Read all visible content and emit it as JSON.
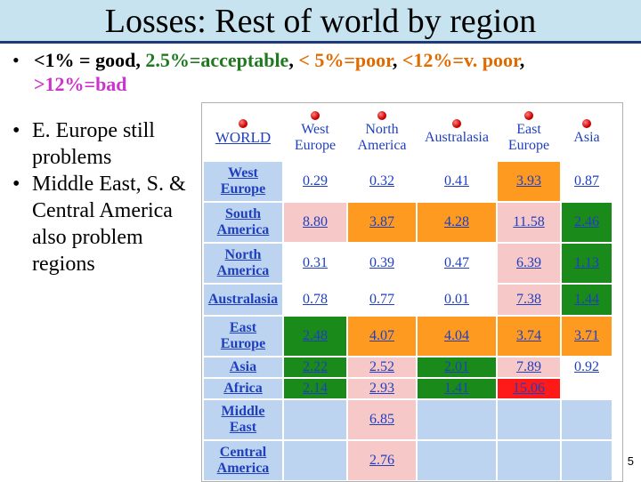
{
  "title": "Losses: Rest of world by region",
  "legend": {
    "bullet": "•",
    "good": "<1% = good",
    "acceptable": "2.5%=acceptable",
    "poor": "< 5%=poor",
    "vpoor": "<12%=v. poor",
    "bad": ">12%=bad",
    "separator": ","
  },
  "bullets": [
    {
      "mark": "•",
      "text": "E. Europe still problems"
    },
    {
      "mark": "•",
      "text": "Middle East, S. & Central America also problem regions"
    }
  ],
  "table": {
    "corner": "WORLD",
    "columns": [
      {
        "line1": "West",
        "line2": "Europe"
      },
      {
        "line1": "North",
        "line2": "America"
      },
      {
        "line1": "Australasia",
        "line2": ""
      },
      {
        "line1": "East",
        "line2": "Europe"
      },
      {
        "line1": "Asia",
        "line2": ""
      }
    ],
    "rows": [
      {
        "line1": "West",
        "line2": "Europe",
        "cells": [
          {
            "v": "0.29",
            "c": "w"
          },
          {
            "v": "0.32",
            "c": "w"
          },
          {
            "v": "0.41",
            "c": "w"
          },
          {
            "v": "3.93",
            "c": "o"
          },
          {
            "v": "0.87",
            "c": "w"
          }
        ]
      },
      {
        "line1": "South",
        "line2": "America",
        "cells": [
          {
            "v": "8.80",
            "c": "p"
          },
          {
            "v": "3.87",
            "c": "o"
          },
          {
            "v": "4.28",
            "c": "o"
          },
          {
            "v": "11.58",
            "c": "p"
          },
          {
            "v": "2.46",
            "c": "g"
          }
        ]
      },
      {
        "line1": "North",
        "line2": "America",
        "cells": [
          {
            "v": "0.31",
            "c": "w"
          },
          {
            "v": "0.39",
            "c": "w"
          },
          {
            "v": "0.47",
            "c": "w"
          },
          {
            "v": "6.39",
            "c": "p"
          },
          {
            "v": "1.13",
            "c": "g"
          }
        ]
      },
      {
        "line1": "Australasia",
        "line2": "",
        "cells": [
          {
            "v": "0.78",
            "c": "w"
          },
          {
            "v": "0.77",
            "c": "w"
          },
          {
            "v": "0.01",
            "c": "w"
          },
          {
            "v": "7.38",
            "c": "p"
          },
          {
            "v": "1.44",
            "c": "g"
          }
        ]
      },
      {
        "line1": "East",
        "line2": "Europe",
        "cells": [
          {
            "v": "2.48",
            "c": "g"
          },
          {
            "v": "4.07",
            "c": "o"
          },
          {
            "v": "4.04",
            "c": "o"
          },
          {
            "v": "3.74",
            "c": "o"
          },
          {
            "v": "3.71",
            "c": "o"
          }
        ]
      },
      {
        "line1": "Asia",
        "line2": "",
        "cells": [
          {
            "v": "2.22",
            "c": "g"
          },
          {
            "v": "2.52",
            "c": "p"
          },
          {
            "v": "2.01",
            "c": "g"
          },
          {
            "v": "7.89",
            "c": "p"
          },
          {
            "v": "0.92",
            "c": "w"
          }
        ]
      },
      {
        "line1": "Africa",
        "line2": "",
        "cells": [
          {
            "v": "2.14",
            "c": "g"
          },
          {
            "v": "2.93",
            "c": "p"
          },
          {
            "v": "1.41",
            "c": "g"
          },
          {
            "v": "15.06",
            "c": "r"
          },
          {
            "v": "",
            "c": "w"
          }
        ]
      },
      {
        "line1": "Middle",
        "line2": "East",
        "cells": [
          {
            "v": "",
            "c": "b"
          },
          {
            "v": "6.85",
            "c": "p"
          },
          {
            "v": "",
            "c": "b"
          },
          {
            "v": "",
            "c": "b"
          },
          {
            "v": "",
            "c": "b"
          }
        ]
      },
      {
        "line1": "Central",
        "line2": "America",
        "cells": [
          {
            "v": "",
            "c": "b"
          },
          {
            "v": "2.76",
            "c": "p"
          },
          {
            "v": "",
            "c": "b"
          },
          {
            "v": "",
            "c": "b"
          },
          {
            "v": "",
            "c": "b"
          }
        ]
      }
    ]
  },
  "colors": {
    "green": "#1a8a1a",
    "orange": "#ff9a20",
    "pink": "#f6c8c8",
    "red": "#ff1a1a",
    "blue": "#bcd4f0",
    "title_bar": "#c7e3f0"
  },
  "page_number": "5"
}
